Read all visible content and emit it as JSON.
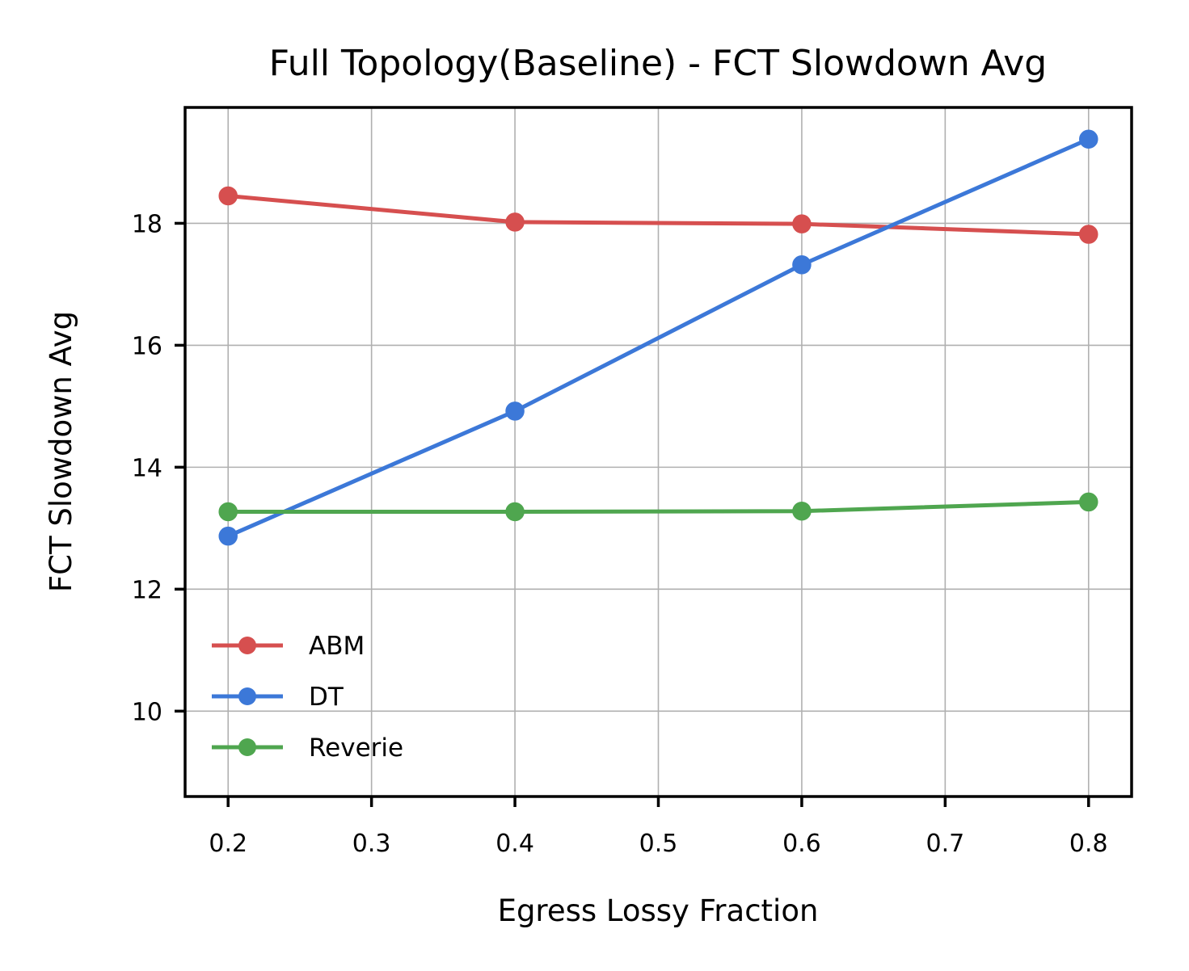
{
  "chart_data": {
    "type": "line",
    "title": "Full Topology(Baseline) - FCT Slowdown Avg",
    "xlabel": "Egress Lossy Fraction",
    "ylabel": "FCT Slowdown Avg",
    "x": [
      0.2,
      0.4,
      0.6,
      0.8
    ],
    "xlim": [
      0.17,
      0.83
    ],
    "ylim": [
      8.6,
      19.9
    ],
    "xticks": [
      0.2,
      0.3,
      0.4,
      0.5,
      0.6,
      0.7,
      0.8
    ],
    "xtick_labels": [
      "0.2",
      "0.3",
      "0.4",
      "0.5",
      "0.6",
      "0.7",
      "0.8"
    ],
    "yticks": [
      10,
      12,
      14,
      16,
      18
    ],
    "ytick_labels": [
      "10",
      "12",
      "14",
      "16",
      "18"
    ],
    "grid": true,
    "legend_position": "lower-left",
    "series": [
      {
        "name": "ABM",
        "color": "#d64f4f",
        "values": [
          18.45,
          18.02,
          17.99,
          17.82
        ]
      },
      {
        "name": "DT",
        "color": "#3c78d8",
        "values": [
          12.87,
          14.92,
          17.32,
          19.38
        ]
      },
      {
        "name": "Reverie",
        "color": "#4fa64f",
        "values": [
          13.27,
          13.27,
          13.28,
          13.43
        ]
      }
    ]
  }
}
